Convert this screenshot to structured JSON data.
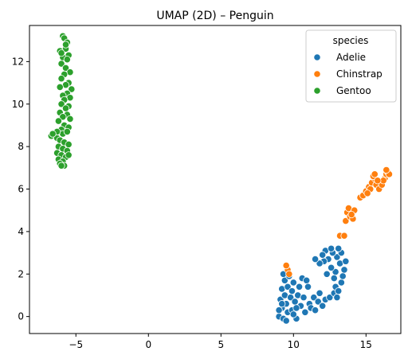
{
  "chart_data": {
    "type": "scatter",
    "title": "UMAP (2D) – Penguin",
    "xlabel": "",
    "ylabel": "",
    "xlim": [
      -8.2,
      17.4
    ],
    "ylim": [
      -0.8,
      13.7
    ],
    "xticks": [
      -5,
      0,
      5,
      10,
      15
    ],
    "yticks": [
      0,
      2,
      4,
      6,
      8,
      10,
      12
    ],
    "xtick_labels": [
      "−5",
      "0",
      "5",
      "10",
      "15"
    ],
    "ytick_labels": [
      "0",
      "2",
      "4",
      "6",
      "8",
      "10",
      "12"
    ],
    "grid": false,
    "legend": {
      "title": "species",
      "position": "top-right"
    },
    "series": [
      {
        "name": "Adelie",
        "color": "#1f77b4",
        "points": [
          [
            9.0,
            0.0
          ],
          [
            9.3,
            -0.1
          ],
          [
            9.6,
            0.2
          ],
          [
            9.2,
            0.4
          ],
          [
            9.5,
            0.6
          ],
          [
            9.9,
            0.3
          ],
          [
            10.2,
            -0.1
          ],
          [
            10.0,
            0.1
          ],
          [
            9.1,
            0.8
          ],
          [
            9.4,
            1.0
          ],
          [
            9.8,
            0.9
          ],
          [
            10.1,
            0.7
          ],
          [
            9.2,
            1.3
          ],
          [
            9.6,
            1.4
          ],
          [
            9.9,
            1.2
          ],
          [
            10.3,
            1.0
          ],
          [
            9.4,
            1.7
          ],
          [
            9.7,
            1.9
          ],
          [
            9.3,
            2.0
          ],
          [
            10.0,
            1.6
          ],
          [
            10.4,
            1.4
          ],
          [
            10.6,
            1.8
          ],
          [
            10.9,
            1.7
          ],
          [
            11.0,
            1.4
          ],
          [
            10.7,
            0.9
          ],
          [
            10.5,
            0.5
          ],
          [
            11.1,
            0.6
          ],
          [
            11.4,
            0.9
          ],
          [
            11.7,
            0.7
          ],
          [
            12.0,
            0.5
          ],
          [
            12.2,
            0.8
          ],
          [
            11.8,
            1.1
          ],
          [
            11.2,
            0.4
          ],
          [
            10.8,
            0.2
          ],
          [
            12.5,
            0.9
          ],
          [
            12.8,
            1.1
          ],
          [
            12.9,
            1.4
          ],
          [
            13.1,
            1.2
          ],
          [
            13.3,
            1.6
          ],
          [
            13.4,
            1.9
          ],
          [
            13.5,
            2.2
          ],
          [
            13.2,
            2.5
          ],
          [
            13.0,
            2.8
          ],
          [
            12.7,
            3.0
          ],
          [
            12.4,
            2.7
          ],
          [
            12.1,
            2.6
          ],
          [
            11.8,
            2.5
          ],
          [
            11.5,
            2.7
          ],
          [
            12.2,
            3.1
          ],
          [
            12.6,
            3.2
          ],
          [
            12.9,
            2.1
          ],
          [
            12.6,
            2.3
          ],
          [
            12.3,
            2.0
          ],
          [
            12.8,
            1.8
          ],
          [
            13.3,
            3.0
          ],
          [
            13.1,
            3.2
          ],
          [
            12.0,
            2.9
          ],
          [
            9.0,
            0.3
          ],
          [
            9.5,
            -0.2
          ],
          [
            10.2,
            0.4
          ],
          [
            9.2,
            0.6
          ],
          [
            11.5,
            0.3
          ],
          [
            13.6,
            2.6
          ],
          [
            13.0,
            0.9
          ]
        ]
      },
      {
        "name": "Chinstrap",
        "color": "#ff7f0e",
        "points": [
          [
            9.6,
            2.2
          ],
          [
            9.5,
            2.4
          ],
          [
            9.7,
            2.0
          ],
          [
            13.2,
            3.8
          ],
          [
            13.5,
            3.8
          ],
          [
            13.6,
            4.5
          ],
          [
            13.7,
            4.9
          ],
          [
            13.9,
            4.7
          ],
          [
            14.1,
            4.6
          ],
          [
            13.8,
            5.1
          ],
          [
            14.2,
            5.0
          ],
          [
            14.6,
            5.6
          ],
          [
            14.8,
            5.7
          ],
          [
            15.0,
            5.9
          ],
          [
            15.2,
            6.1
          ],
          [
            15.4,
            6.3
          ],
          [
            15.6,
            6.5
          ],
          [
            15.5,
            6.6
          ],
          [
            15.7,
            6.2
          ],
          [
            15.9,
            6.0
          ],
          [
            16.1,
            6.2
          ],
          [
            16.3,
            6.5
          ],
          [
            16.4,
            6.7
          ],
          [
            16.5,
            6.8
          ],
          [
            16.6,
            6.7
          ],
          [
            16.2,
            6.4
          ],
          [
            15.8,
            6.4
          ],
          [
            15.3,
            6.0
          ],
          [
            15.1,
            5.8
          ],
          [
            14.0,
            4.8
          ],
          [
            16.4,
            6.9
          ],
          [
            15.6,
            6.7
          ]
        ]
      },
      {
        "name": "Gentoo",
        "color": "#2ca02c",
        "points": [
          [
            -5.9,
            13.2
          ],
          [
            -5.8,
            13.1
          ],
          [
            -5.6,
            12.9
          ],
          [
            -5.7,
            12.6
          ],
          [
            -6.1,
            12.5
          ],
          [
            -5.5,
            12.3
          ],
          [
            -5.9,
            12.2
          ],
          [
            -5.6,
            12.1
          ],
          [
            -6.0,
            11.9
          ],
          [
            -5.7,
            11.7
          ],
          [
            -5.4,
            11.5
          ],
          [
            -5.8,
            11.4
          ],
          [
            -6.0,
            11.2
          ],
          [
            -5.5,
            11.0
          ],
          [
            -5.7,
            10.9
          ],
          [
            -6.1,
            10.8
          ],
          [
            -5.3,
            10.7
          ],
          [
            -5.6,
            10.5
          ],
          [
            -5.9,
            10.4
          ],
          [
            -5.4,
            10.3
          ],
          [
            -5.8,
            10.2
          ],
          [
            -6.0,
            10.0
          ],
          [
            -5.5,
            9.9
          ],
          [
            -5.7,
            9.8
          ],
          [
            -6.1,
            9.6
          ],
          [
            -5.6,
            9.5
          ],
          [
            -5.9,
            9.4
          ],
          [
            -5.4,
            9.3
          ],
          [
            -6.2,
            9.2
          ],
          [
            -5.8,
            9.0
          ],
          [
            -5.5,
            8.9
          ],
          [
            -6.0,
            8.8
          ],
          [
            -6.5,
            8.6
          ],
          [
            -6.7,
            8.5
          ],
          [
            -6.3,
            8.4
          ],
          [
            -5.9,
            8.6
          ],
          [
            -5.6,
            8.7
          ],
          [
            -6.1,
            8.3
          ],
          [
            -5.8,
            8.2
          ],
          [
            -5.5,
            8.1
          ],
          [
            -6.2,
            8.0
          ],
          [
            -5.9,
            7.9
          ],
          [
            -5.6,
            7.8
          ],
          [
            -6.3,
            7.7
          ],
          [
            -6.0,
            7.6
          ],
          [
            -5.7,
            7.5
          ],
          [
            -6.2,
            7.4
          ],
          [
            -5.9,
            7.3
          ],
          [
            -6.1,
            7.2
          ],
          [
            -5.8,
            7.1
          ],
          [
            -6.0,
            7.1
          ],
          [
            -6.3,
            8.7
          ],
          [
            -6.6,
            8.6
          ],
          [
            -5.5,
            7.6
          ],
          [
            -5.7,
            12.8
          ],
          [
            -6.0,
            12.4
          ]
        ]
      }
    ]
  }
}
